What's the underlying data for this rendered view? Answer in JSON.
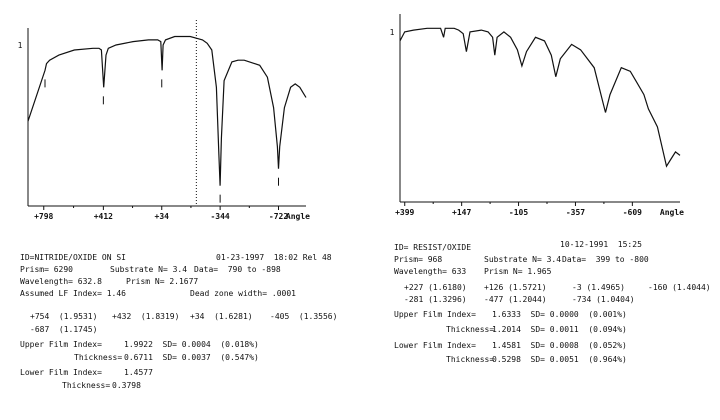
{
  "left": {
    "chart_data": {
      "type": "line",
      "ylabel": "1",
      "xlabel": "Angle",
      "x_tick_labels": [
        "+798",
        "+412",
        "+34",
        "-344",
        "-722"
      ],
      "x_tick_values": [
        798,
        412,
        34,
        -344,
        -722
      ],
      "xlim": [
        900,
        -900
      ],
      "ylim": [
        0,
        1.05
      ],
      "dead_zone_marker_x": -190,
      "series": [
        {
          "x": [
            900,
            790,
            780,
            760,
            700,
            600,
            480,
            440,
            425,
            410,
            395,
            380,
            330,
            220,
            120,
            60,
            40,
            32,
            25,
            10,
            -50,
            -150,
            -190,
            -230,
            -260,
            -290,
            -320,
            -336,
            -344,
            -352,
            -370,
            -420,
            -460,
            -500,
            -600,
            -650,
            -690,
            -715,
            -722,
            -730,
            -760,
            -800,
            -830,
            -860,
            -880,
            -900
          ],
          "y": [
            0.5,
            0.8,
            0.84,
            0.86,
            0.89,
            0.92,
            0.93,
            0.93,
            0.92,
            0.7,
            0.89,
            0.93,
            0.95,
            0.97,
            0.98,
            0.98,
            0.97,
            0.8,
            0.95,
            0.98,
            1.0,
            1.0,
            0.99,
            0.98,
            0.96,
            0.92,
            0.7,
            0.3,
            0.12,
            0.4,
            0.74,
            0.85,
            0.86,
            0.86,
            0.83,
            0.76,
            0.58,
            0.35,
            0.22,
            0.35,
            0.58,
            0.7,
            0.72,
            0.7,
            0.67,
            0.64
          ]
        }
      ],
      "dip_markers": [
        790,
        412,
        34,
        -344,
        -722
      ]
    },
    "results": {
      "id_line": "ID=NITRIDE/OXIDE ON SI",
      "date_line": "01-23-1997  18:02 Rel 48",
      "prism": "Prism= 6290",
      "substrate": "Substrate N= 3.4",
      "data": "Data=  790 to -898",
      "wavelength": "Wavelength= 632.8",
      "prism_n": "Prism N= 2.1677",
      "assumed_lf": "Assumed LF Index= 1.46",
      "dead_zone": "Dead zone width= .0001",
      "modes_row1": [
        "+754  (1.9531)",
        "+432  (1.8319)",
        "+34  (1.6281)",
        "-405  (1.3556)"
      ],
      "modes_row2": "-687  (1.1745)",
      "upper_index_label": "Upper Film Index=",
      "upper_index_value": "1.9922  SD= 0.0004  (0.018%)",
      "upper_thickness_label": "Thickness=",
      "upper_thickness_value": "0.6711  SD= 0.0037  (0.547%)",
      "lower_index_label": "Lower Film Index=",
      "lower_index_value": "1.4577",
      "lower_thickness_label": "Thickness=",
      "lower_thickness_value": "0.3798"
    }
  },
  "right": {
    "chart_data": {
      "type": "line",
      "ylabel": "1",
      "xlabel": "Angle",
      "x_tick_labels": [
        "+399",
        "+147",
        "-105",
        "-357",
        "-609"
      ],
      "x_tick_values": [
        399,
        147,
        -105,
        -357,
        -609
      ],
      "xlim": [
        420,
        -820
      ],
      "ylim": [
        0,
        1.05
      ],
      "series": [
        {
          "x": [
            420,
            399,
            360,
            300,
            240,
            227,
            220,
            180,
            160,
            140,
            126,
            110,
            60,
            30,
            10,
            0,
            -10,
            -40,
            -70,
            -100,
            -120,
            -140,
            -180,
            -220,
            -250,
            -270,
            -290,
            -340,
            -380,
            -440,
            -480,
            -490,
            -510,
            -560,
            -600,
            -660,
            -680,
            -720,
            -760,
            -780,
            -800,
            -820
          ],
          "y": [
            0.9,
            0.95,
            0.96,
            0.97,
            0.97,
            0.92,
            0.97,
            0.97,
            0.96,
            0.94,
            0.84,
            0.95,
            0.96,
            0.95,
            0.92,
            0.82,
            0.92,
            0.95,
            0.92,
            0.85,
            0.76,
            0.84,
            0.92,
            0.9,
            0.82,
            0.7,
            0.8,
            0.88,
            0.85,
            0.75,
            0.55,
            0.5,
            0.6,
            0.75,
            0.73,
            0.6,
            0.52,
            0.42,
            0.2,
            0.24,
            0.28,
            0.26
          ]
        }
      ]
    },
    "results": {
      "id_line": "ID= RESIST/OXIDE",
      "date_line": "10-12-1991  15:25",
      "prism": "Prism= 968",
      "substrate": "Substrate N= 3.4",
      "data": "Data=  399 to -800",
      "wavelength": "Wavelength= 633",
      "prism_n": "Prism N= 1.965",
      "modes_row1": [
        "+227 (1.6180)",
        "+126 (1.5721)",
        "-3 (1.4965)",
        "-160 (1.4044)"
      ],
      "modes_row2": [
        "-281 (1.3296)",
        "-477 (1.2044)",
        "-734 (1.0404)"
      ],
      "upper_index_label": "Upper Film Index=",
      "upper_index_value": "1.6333  SD= 0.0000  (0.001%)",
      "upper_thickness_label": "Thickness=",
      "upper_thickness_value": "1.2014  SD= 0.0011  (0.094%)",
      "lower_index_label": "Lower Film Index=",
      "lower_index_value": "1.4581  SD= 0.0008  (0.052%)",
      "lower_thickness_label": "Thickness=",
      "lower_thickness_value": "0.5298  SD= 0.0051  (0.964%)"
    }
  }
}
